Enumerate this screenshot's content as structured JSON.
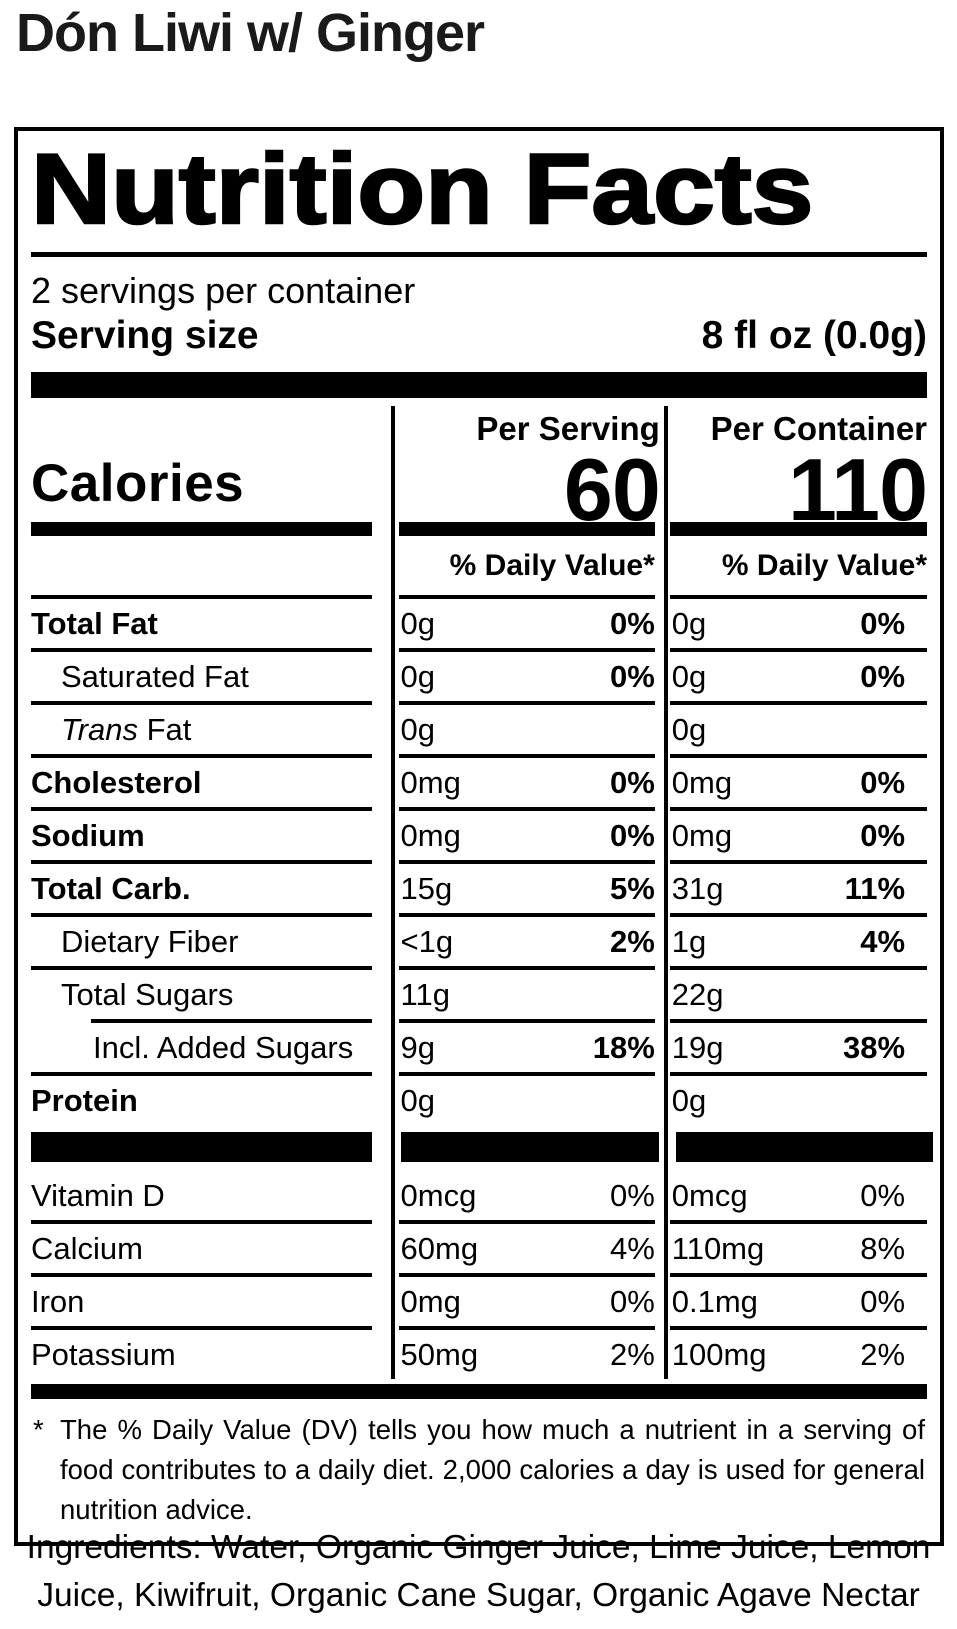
{
  "page_title": "Dón Liwi w/ Ginger",
  "colors": {
    "text": "#000000",
    "title_text": "#1a1a1a",
    "background": "#ffffff",
    "rule": "#000000"
  },
  "label": {
    "title": "Nutrition Facts",
    "servings_per_container": "2 servings per container",
    "serving_size": {
      "label": "Serving size",
      "value": "8 fl oz (0.0g)"
    },
    "calories_word": "Calories",
    "columns": [
      {
        "header": "Per Serving",
        "calories": "60",
        "dv_header": "% Daily Value*"
      },
      {
        "header": "Per Container",
        "calories": "110",
        "dv_header": "% Daily Value*"
      }
    ],
    "rows": [
      {
        "name": "Total Fat",
        "per_serving": {
          "amount": "0g",
          "dv": "0%"
        },
        "per_container": {
          "amount": "0g",
          "dv": "0%"
        }
      },
      {
        "name": "Saturated Fat",
        "per_serving": {
          "amount": "0g",
          "dv": "0%"
        },
        "per_container": {
          "amount": "0g",
          "dv": "0%"
        }
      },
      {
        "name_italic": "Trans",
        "name_rest": " Fat",
        "per_serving": {
          "amount": "0g"
        },
        "per_container": {
          "amount": "0g"
        }
      },
      {
        "name": "Cholesterol",
        "per_serving": {
          "amount": "0mg",
          "dv": "0%"
        },
        "per_container": {
          "amount": "0mg",
          "dv": "0%"
        }
      },
      {
        "name": "Sodium",
        "per_serving": {
          "amount": "0mg",
          "dv": "0%"
        },
        "per_container": {
          "amount": "0mg",
          "dv": "0%"
        }
      },
      {
        "name": "Total Carb.",
        "per_serving": {
          "amount": "15g",
          "dv": "5%"
        },
        "per_container": {
          "amount": "31g",
          "dv": "11%"
        }
      },
      {
        "name": "Dietary Fiber",
        "per_serving": {
          "amount": "<1g",
          "dv": "2%"
        },
        "per_container": {
          "amount": "1g",
          "dv": "4%"
        }
      },
      {
        "name": "Total Sugars",
        "per_serving": {
          "amount": "11g"
        },
        "per_container": {
          "amount": "22g"
        }
      },
      {
        "name": "Incl. Added Sugars",
        "per_serving": {
          "amount": "9g",
          "dv": "18%"
        },
        "per_container": {
          "amount": "19g",
          "dv": "38%"
        }
      },
      {
        "name": "Protein",
        "per_serving": {
          "amount": "0g"
        },
        "per_container": {
          "amount": "0g"
        }
      },
      {
        "name": "Vitamin D",
        "per_serving": {
          "amount": "0mcg",
          "dv": "0%"
        },
        "per_container": {
          "amount": "0mcg",
          "dv": "0%"
        }
      },
      {
        "name": "Calcium",
        "per_serving": {
          "amount": "60mg",
          "dv": "4%"
        },
        "per_container": {
          "amount": "110mg",
          "dv": "8%"
        }
      },
      {
        "name": "Iron",
        "per_serving": {
          "amount": "0mg",
          "dv": "0%"
        },
        "per_container": {
          "amount": "0.1mg",
          "dv": "0%"
        }
      },
      {
        "name": "Potassium",
        "per_serving": {
          "amount": "50mg",
          "dv": "2%"
        },
        "per_container": {
          "amount": "100mg",
          "dv": "2%"
        }
      }
    ],
    "footnote": {
      "asterisk": "*",
      "text": "The % Daily Value (DV) tells you how much a nutrient in a serving of food contributes to a daily diet. 2,000 calories a day is used for general nutrition advice."
    }
  },
  "ingredients": "Ingredients: Water, Organic Ginger Juice, Lime Juice, Lemon Juice, Kiwifruit, Organic Cane Sugar, Organic Agave Nectar"
}
